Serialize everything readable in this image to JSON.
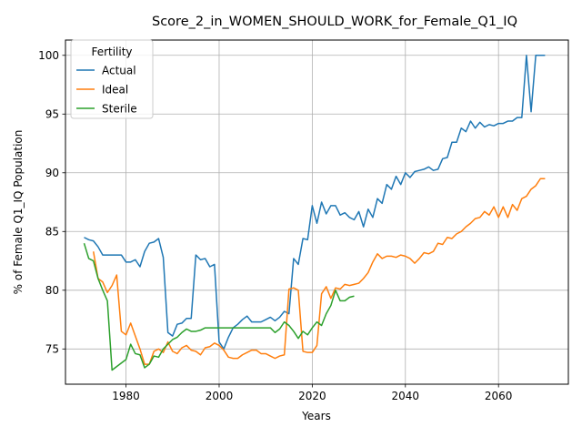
{
  "chart_data": {
    "type": "line",
    "title": "Score_2_in_WOMEN_SHOULD_WORK_for_Female_Q1_IQ",
    "xlabel": "Years",
    "ylabel": "% of Female Q1_IQ Population",
    "xlim": [
      1967,
      2075
    ],
    "ylim": [
      72,
      101.3
    ],
    "xticks": [
      1980,
      2000,
      2020,
      2040,
      2060
    ],
    "yticks": [
      75,
      80,
      85,
      90,
      95,
      100
    ],
    "grid": true,
    "legend": {
      "title": "Fertility",
      "placement": "top-left"
    },
    "series": [
      {
        "name": "Actual",
        "color": "#1f77b4",
        "points": [
          [
            1971,
            84.5
          ],
          [
            1972,
            84.3
          ],
          [
            1973,
            84.2
          ],
          [
            1974,
            83.7
          ],
          [
            1975,
            83.0
          ],
          [
            1976,
            83.0
          ],
          [
            1977,
            83.0
          ],
          [
            1978,
            83.0
          ],
          [
            1979,
            83.0
          ],
          [
            1980,
            82.4
          ],
          [
            1981,
            82.4
          ],
          [
            1982,
            82.6
          ],
          [
            1983,
            82.0
          ],
          [
            1984,
            83.3
          ],
          [
            1985,
            84.0
          ],
          [
            1986,
            84.1
          ],
          [
            1987,
            84.4
          ],
          [
            1988,
            82.8
          ],
          [
            1989,
            76.4
          ],
          [
            1990,
            76.1
          ],
          [
            1991,
            77.1
          ],
          [
            1992,
            77.2
          ],
          [
            1993,
            77.6
          ],
          [
            1994,
            77.6
          ],
          [
            1995,
            83.0
          ],
          [
            1996,
            82.6
          ],
          [
            1997,
            82.7
          ],
          [
            1998,
            82.0
          ],
          [
            1999,
            82.2
          ],
          [
            2000,
            75.6
          ],
          [
            2001,
            75.0
          ],
          [
            2002,
            76.0
          ],
          [
            2003,
            76.8
          ],
          [
            2004,
            77.1
          ],
          [
            2005,
            77.5
          ],
          [
            2006,
            77.8
          ],
          [
            2007,
            77.3
          ],
          [
            2008,
            77.3
          ],
          [
            2009,
            77.3
          ],
          [
            2010,
            77.5
          ],
          [
            2011,
            77.7
          ],
          [
            2012,
            77.4
          ],
          [
            2013,
            77.7
          ],
          [
            2014,
            78.2
          ],
          [
            2015,
            78.0
          ],
          [
            2016,
            82.7
          ],
          [
            2017,
            82.2
          ],
          [
            2018,
            84.4
          ],
          [
            2019,
            84.3
          ],
          [
            2020,
            87.2
          ],
          [
            2021,
            85.7
          ],
          [
            2022,
            87.5
          ],
          [
            2023,
            86.5
          ],
          [
            2024,
            87.2
          ],
          [
            2025,
            87.2
          ],
          [
            2026,
            86.4
          ],
          [
            2027,
            86.6
          ],
          [
            2028,
            86.2
          ],
          [
            2029,
            86.0
          ],
          [
            2030,
            86.7
          ],
          [
            2031,
            85.4
          ],
          [
            2032,
            86.9
          ],
          [
            2033,
            86.2
          ],
          [
            2034,
            87.8
          ],
          [
            2035,
            87.4
          ],
          [
            2036,
            89.0
          ],
          [
            2037,
            88.6
          ],
          [
            2038,
            89.7
          ],
          [
            2039,
            89.0
          ],
          [
            2040,
            90.0
          ],
          [
            2041,
            89.6
          ],
          [
            2042,
            90.1
          ],
          [
            2043,
            90.2
          ],
          [
            2044,
            90.3
          ],
          [
            2045,
            90.5
          ],
          [
            2046,
            90.2
          ],
          [
            2047,
            90.3
          ],
          [
            2048,
            91.2
          ],
          [
            2049,
            91.3
          ],
          [
            2050,
            92.6
          ],
          [
            2051,
            92.6
          ],
          [
            2052,
            93.8
          ],
          [
            2053,
            93.5
          ],
          [
            2054,
            94.4
          ],
          [
            2055,
            93.8
          ],
          [
            2056,
            94.3
          ],
          [
            2057,
            93.9
          ],
          [
            2058,
            94.1
          ],
          [
            2059,
            94.0
          ],
          [
            2060,
            94.2
          ],
          [
            2061,
            94.2
          ],
          [
            2062,
            94.4
          ],
          [
            2063,
            94.4
          ],
          [
            2064,
            94.7
          ],
          [
            2065,
            94.7
          ],
          [
            2066,
            100.0
          ],
          [
            2067,
            95.2
          ],
          [
            2068,
            100.0
          ],
          [
            2069,
            100.0
          ],
          [
            2070,
            100.0
          ]
        ]
      },
      {
        "name": "Ideal",
        "color": "#ff7f0e",
        "points": [
          [
            1973,
            83.3
          ],
          [
            1974,
            81.0
          ],
          [
            1975,
            80.7
          ],
          [
            1976,
            79.8
          ],
          [
            1977,
            80.4
          ],
          [
            1978,
            81.3
          ],
          [
            1979,
            76.5
          ],
          [
            1980,
            76.2
          ],
          [
            1981,
            77.2
          ],
          [
            1982,
            76.1
          ],
          [
            1983,
            75.0
          ],
          [
            1984,
            73.7
          ],
          [
            1985,
            73.7
          ],
          [
            1986,
            74.8
          ],
          [
            1987,
            75.0
          ],
          [
            1988,
            74.7
          ],
          [
            1989,
            75.6
          ],
          [
            1990,
            74.8
          ],
          [
            1991,
            74.6
          ],
          [
            1992,
            75.1
          ],
          [
            1993,
            75.3
          ],
          [
            1994,
            74.9
          ],
          [
            1995,
            74.8
          ],
          [
            1996,
            74.5
          ],
          [
            1997,
            75.1
          ],
          [
            1998,
            75.2
          ],
          [
            1999,
            75.5
          ],
          [
            2000,
            75.3
          ],
          [
            2001,
            74.9
          ],
          [
            2002,
            74.3
          ],
          [
            2003,
            74.2
          ],
          [
            2004,
            74.2
          ],
          [
            2005,
            74.5
          ],
          [
            2006,
            74.7
          ],
          [
            2007,
            74.9
          ],
          [
            2008,
            74.9
          ],
          [
            2009,
            74.6
          ],
          [
            2010,
            74.6
          ],
          [
            2011,
            74.4
          ],
          [
            2012,
            74.2
          ],
          [
            2013,
            74.4
          ],
          [
            2014,
            74.5
          ],
          [
            2015,
            80.1
          ],
          [
            2016,
            80.2
          ],
          [
            2017,
            80.0
          ],
          [
            2018,
            74.8
          ],
          [
            2019,
            74.7
          ],
          [
            2020,
            74.7
          ],
          [
            2021,
            75.3
          ],
          [
            2022,
            79.7
          ],
          [
            2023,
            80.3
          ],
          [
            2024,
            79.3
          ],
          [
            2025,
            80.2
          ],
          [
            2026,
            80.1
          ],
          [
            2027,
            80.5
          ],
          [
            2028,
            80.4
          ],
          [
            2029,
            80.5
          ],
          [
            2030,
            80.6
          ],
          [
            2031,
            81.0
          ],
          [
            2032,
            81.5
          ],
          [
            2033,
            82.4
          ],
          [
            2034,
            83.1
          ],
          [
            2035,
            82.7
          ],
          [
            2036,
            82.9
          ],
          [
            2037,
            82.9
          ],
          [
            2038,
            82.8
          ],
          [
            2039,
            83.0
          ],
          [
            2040,
            82.9
          ],
          [
            2041,
            82.7
          ],
          [
            2042,
            82.3
          ],
          [
            2043,
            82.7
          ],
          [
            2044,
            83.2
          ],
          [
            2045,
            83.1
          ],
          [
            2046,
            83.3
          ],
          [
            2047,
            84.0
          ],
          [
            2048,
            83.9
          ],
          [
            2049,
            84.5
          ],
          [
            2050,
            84.4
          ],
          [
            2051,
            84.8
          ],
          [
            2052,
            85.0
          ],
          [
            2053,
            85.4
          ],
          [
            2054,
            85.7
          ],
          [
            2055,
            86.1
          ],
          [
            2056,
            86.2
          ],
          [
            2057,
            86.7
          ],
          [
            2058,
            86.4
          ],
          [
            2059,
            87.1
          ],
          [
            2060,
            86.2
          ],
          [
            2061,
            87.1
          ],
          [
            2062,
            86.2
          ],
          [
            2063,
            87.3
          ],
          [
            2064,
            86.8
          ],
          [
            2065,
            87.8
          ],
          [
            2066,
            88.0
          ],
          [
            2067,
            88.6
          ],
          [
            2068,
            88.9
          ],
          [
            2069,
            89.5
          ],
          [
            2070,
            89.5
          ]
        ]
      },
      {
        "name": "Sterile",
        "color": "#2ca02c",
        "points": [
          [
            1971,
            84.0
          ],
          [
            1972,
            82.7
          ],
          [
            1973,
            82.5
          ],
          [
            1974,
            81.0
          ],
          [
            1975,
            80.0
          ],
          [
            1976,
            79.1
          ],
          [
            1977,
            73.2
          ],
          [
            1978,
            73.5
          ],
          [
            1979,
            73.8
          ],
          [
            1980,
            74.1
          ],
          [
            1981,
            75.4
          ],
          [
            1982,
            74.6
          ],
          [
            1983,
            74.5
          ],
          [
            1984,
            73.4
          ],
          [
            1985,
            73.7
          ],
          [
            1986,
            74.4
          ],
          [
            1987,
            74.3
          ],
          [
            1988,
            75.0
          ],
          [
            1989,
            75.4
          ],
          [
            1990,
            75.8
          ],
          [
            1991,
            76.0
          ],
          [
            1992,
            76.4
          ],
          [
            1993,
            76.7
          ],
          [
            1994,
            76.5
          ],
          [
            1995,
            76.5
          ],
          [
            1996,
            76.6
          ],
          [
            1997,
            76.8
          ],
          [
            1998,
            76.8
          ],
          [
            1999,
            76.8
          ],
          [
            2000,
            76.8
          ],
          [
            2001,
            76.8
          ],
          [
            2002,
            76.8
          ],
          [
            2003,
            76.8
          ],
          [
            2004,
            76.8
          ],
          [
            2005,
            76.8
          ],
          [
            2006,
            76.8
          ],
          [
            2007,
            76.8
          ],
          [
            2008,
            76.8
          ],
          [
            2009,
            76.8
          ],
          [
            2010,
            76.8
          ],
          [
            2011,
            76.8
          ],
          [
            2012,
            76.4
          ],
          [
            2013,
            76.7
          ],
          [
            2014,
            77.3
          ],
          [
            2015,
            77.0
          ],
          [
            2016,
            76.5
          ],
          [
            2017,
            75.9
          ],
          [
            2018,
            76.5
          ],
          [
            2019,
            76.2
          ],
          [
            2020,
            76.8
          ],
          [
            2021,
            77.3
          ],
          [
            2022,
            77.0
          ],
          [
            2023,
            78.0
          ],
          [
            2024,
            78.7
          ],
          [
            2025,
            80.0
          ],
          [
            2026,
            79.1
          ],
          [
            2027,
            79.1
          ],
          [
            2028,
            79.4
          ],
          [
            2029,
            79.5
          ]
        ]
      }
    ]
  }
}
